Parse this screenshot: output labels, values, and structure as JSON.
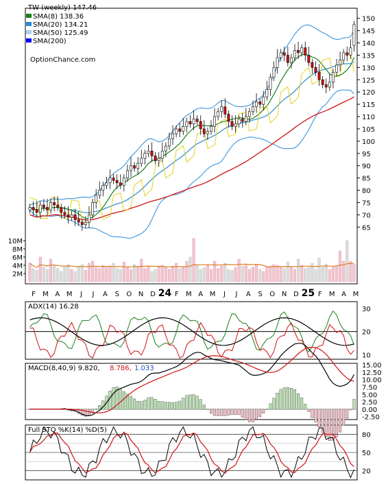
{
  "chart_data": [
    {
      "type": "candlestick",
      "panel": "price",
      "title": "TW (weekly) 147.46",
      "watermark": "OptionChance.com",
      "legend": [
        {
          "label": "SMA(8) 138.36",
          "color": "#1a7f1a"
        },
        {
          "label": "SMA(20) 134.21",
          "color": "#2a8ad8"
        },
        {
          "label": "SMA(50) 125.49",
          "color": "#a8d0f0"
        },
        {
          "label": "SMA(200)",
          "color": "#0000ff"
        }
      ],
      "y_ticks": [
        65,
        70,
        75,
        80,
        85,
        90,
        95,
        100,
        105,
        110,
        115,
        120,
        125,
        130,
        135,
        140,
        145,
        150
      ],
      "ylim": [
        62,
        153
      ],
      "x_labels": [
        "F",
        "M",
        "A",
        "M",
        "J",
        "J",
        "A",
        "S",
        "O",
        "N",
        "D",
        "24",
        "F",
        "M",
        "A",
        "M",
        "J",
        "J",
        "A",
        "S",
        "O",
        "N",
        "D",
        "25",
        "F",
        "M",
        "A",
        "M"
      ],
      "close": [
        73,
        72,
        71,
        74,
        73,
        72,
        75,
        74,
        73,
        71,
        70,
        69,
        70,
        68,
        67,
        66,
        67,
        70,
        75,
        78,
        80,
        82,
        83,
        85,
        84,
        83,
        82,
        85,
        88,
        90,
        89,
        91,
        93,
        95,
        96,
        94,
        92,
        93,
        96,
        98,
        101,
        103,
        105,
        104,
        106,
        108,
        107,
        109,
        108,
        105,
        103,
        104,
        106,
        110,
        112,
        114,
        111,
        108,
        106,
        107,
        109,
        108,
        110,
        112,
        114,
        116,
        115,
        118,
        121,
        126,
        130,
        134,
        136,
        135,
        132,
        134,
        137,
        136,
        138,
        135,
        132,
        130,
        128,
        125,
        123,
        122,
        124,
        128,
        131,
        133,
        136,
        135,
        138,
        147.46
      ],
      "open": [
        72,
        73,
        72,
        71,
        74,
        73,
        72,
        75,
        74,
        73,
        71,
        70,
        69,
        70,
        68,
        67,
        66,
        67,
        70,
        75,
        78,
        80,
        82,
        83,
        85,
        84,
        83,
        82,
        85,
        88,
        90,
        89,
        91,
        93,
        95,
        96,
        94,
        92,
        93,
        96,
        98,
        101,
        103,
        105,
        104,
        106,
        108,
        107,
        109,
        108,
        105,
        103,
        104,
        106,
        110,
        112,
        114,
        111,
        108,
        106,
        107,
        109,
        108,
        110,
        112,
        114,
        116,
        115,
        118,
        121,
        126,
        130,
        134,
        136,
        135,
        132,
        134,
        137,
        136,
        138,
        135,
        132,
        130,
        128,
        125,
        123,
        122,
        124,
        128,
        131,
        133,
        136,
        135,
        139
      ],
      "volume_axis": [
        "10M",
        "8M",
        "6M",
        "4M",
        "2M"
      ],
      "volume_max_m": 12,
      "volume_m": [
        4.5,
        3.2,
        2.8,
        6.0,
        3.5,
        3.0,
        5.5,
        4.0,
        3.2,
        2.5,
        3.8,
        4.2,
        3.0,
        2.5,
        3.5,
        4.2,
        2.8,
        4.5,
        5.0,
        3.5,
        3.2,
        4.0,
        3.5,
        3.8,
        4.5,
        3.2,
        3.0,
        4.8,
        3.5,
        3.0,
        4.2,
        3.5,
        5.5,
        3.2,
        3.8,
        2.5,
        3.0,
        3.6,
        4.0,
        3.5,
        3.0,
        3.8,
        4.5,
        3.2,
        3.5,
        5.0,
        6.0,
        10.5,
        4.0,
        3.0,
        3.5,
        4.2,
        3.0,
        5.0,
        3.2,
        3.8,
        4.5,
        3.0,
        2.8,
        3.5,
        5.5,
        3.8,
        4.0,
        3.0,
        3.5,
        4.2,
        3.0,
        2.5,
        3.5,
        3.8,
        4.2,
        4.0,
        3.5,
        3.2,
        4.8,
        3.6,
        3.0,
        5.5,
        4.0,
        3.2,
        3.5,
        4.5,
        3.0,
        5.8,
        3.5,
        4.2,
        3.0,
        3.6,
        3.8,
        7.5,
        5.0,
        10.0,
        5.0,
        4.2
      ]
    },
    {
      "type": "line",
      "panel": "adx",
      "title": "ADX(14) 16.28",
      "y_ticks": [
        10,
        20,
        30
      ],
      "ylim": [
        8,
        33
      ]
    },
    {
      "type": "line",
      "panel": "macd",
      "title": "MACD(8,40,9) 9.820,",
      "macd_value": "8.786,",
      "hist_value": "1.033",
      "y_ticks": [
        "15.00",
        "12.50",
        "10.00",
        "7.50",
        "5.00",
        "2.50",
        "0.00",
        "-2.50"
      ],
      "ylim": [
        -3.5,
        15.5
      ]
    },
    {
      "type": "line",
      "panel": "sto",
      "title": "Full STO %K(14) %D(5)",
      "y_ticks": [
        20,
        50,
        80
      ],
      "ylim": [
        5,
        95
      ]
    }
  ]
}
